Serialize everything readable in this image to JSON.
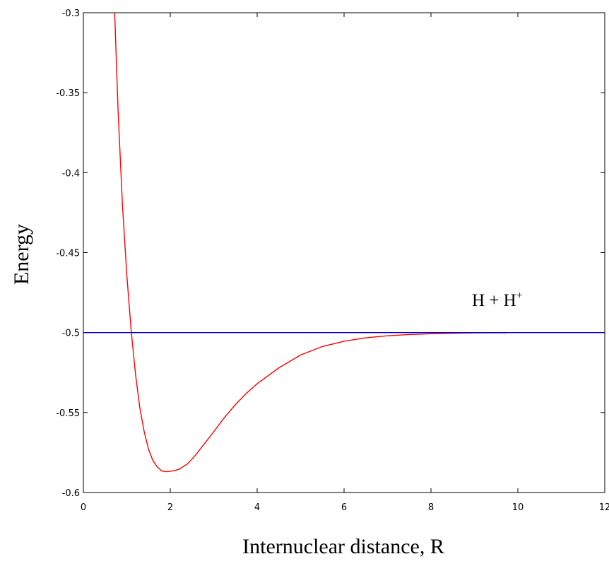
{
  "chart_data": {
    "type": "line",
    "title": "",
    "xlabel": "Internuclear distance, R",
    "ylabel": "Energy",
    "xlim": [
      0,
      12
    ],
    "ylim": [
      -0.6,
      -0.3
    ],
    "xticks": [
      0,
      2,
      4,
      6,
      8,
      10,
      12
    ],
    "yticks": [
      -0.6,
      -0.55,
      -0.5,
      -0.45,
      -0.4,
      -0.35,
      -0.3
    ],
    "xtick_labels": [
      "0",
      "2",
      "4",
      "6",
      "8",
      "10",
      "12"
    ],
    "ytick_labels": [
      "-0.6",
      "-0.55",
      "-0.5",
      "-0.45",
      "-0.4",
      "-0.35",
      "-0.3"
    ],
    "grid": false,
    "annotation": {
      "text": "H + H",
      "superscript": "+",
      "x": 9.6,
      "y": -0.478
    },
    "series": [
      {
        "color": "#ff0000",
        "x": [
          0.72,
          0.8,
          0.9,
          1.0,
          1.1,
          1.2,
          1.3,
          1.4,
          1.5,
          1.6,
          1.7,
          1.8,
          1.9,
          2.0,
          2.1,
          2.2,
          2.4,
          2.6,
          2.8,
          3.0,
          3.25,
          3.5,
          3.75,
          4.0,
          4.5,
          5.0,
          5.5,
          6.0,
          6.5,
          7.0,
          7.5,
          8.0,
          8.5,
          9.0,
          9.5,
          9.75
        ],
        "y": [
          -0.3,
          -0.362,
          -0.42,
          -0.464,
          -0.499,
          -0.526,
          -0.547,
          -0.562,
          -0.573,
          -0.58,
          -0.584,
          -0.5865,
          -0.587,
          -0.5867,
          -0.5862,
          -0.5855,
          -0.582,
          -0.576,
          -0.569,
          -0.562,
          -0.553,
          -0.545,
          -0.538,
          -0.532,
          -0.522,
          -0.514,
          -0.5087,
          -0.5054,
          -0.5033,
          -0.502,
          -0.5012,
          -0.5007,
          -0.5004,
          -0.5002,
          -0.5001,
          -0.5001
        ]
      },
      {
        "color": "#0000cc",
        "x": [
          0,
          12
        ],
        "y": [
          -0.5,
          -0.5
        ]
      }
    ]
  }
}
